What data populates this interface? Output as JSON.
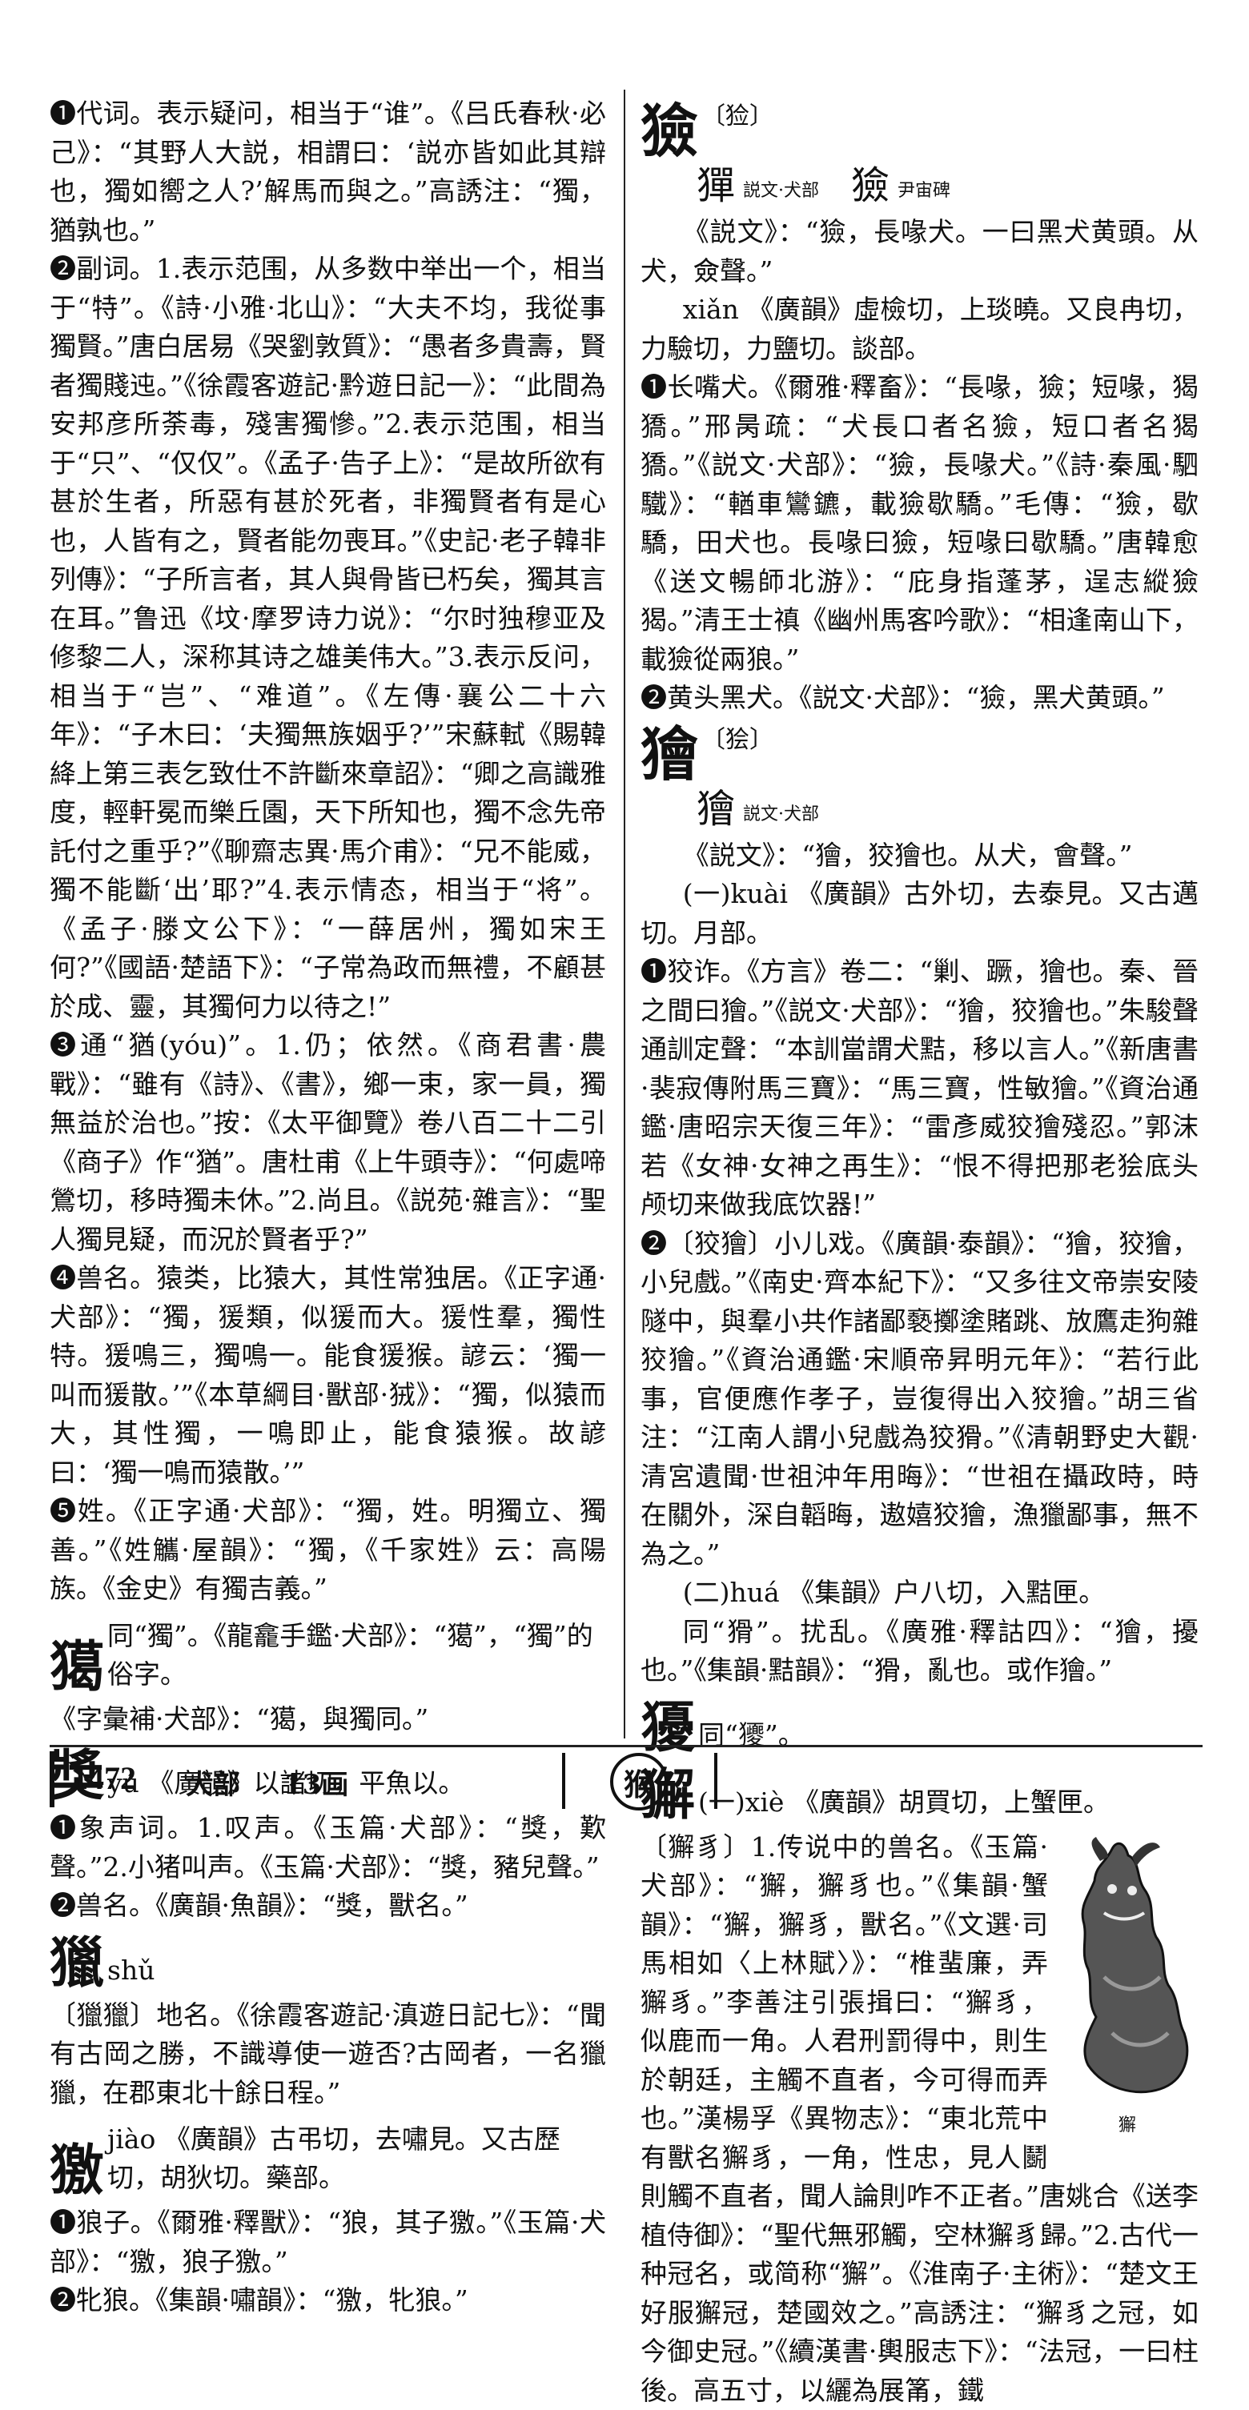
{
  "left_column": [
    {
      "kind": "p",
      "text": "❶代词。表示疑问，相当于“谁”。《吕氏春秋·必己》：“其野人大説，相謂曰：‘説亦皆如此其辯也，獨如嚮之人?’解馬而與之。”高誘注：“獨，猶孰也。”"
    },
    {
      "kind": "p",
      "text": "❷副词。1.表示范围，从多数中举出一个，相当于“特”。《詩·小雅·北山》：“大夫不均，我從事獨賢。”唐白居易《哭劉敦質》：“愚者多貴壽，賢者獨賤迍。”《徐霞客遊記·黔遊日記一》：“此間為安邦彦所荼毒，殘害獨慘。”2.表示范围，相当于“只”、“仅仅”。《孟子·告子上》：“是故所欲有甚於生者，所惡有甚於死者，非獨賢者有是心也，人皆有之，賢者能勿喪耳。”《史記·老子韓非列傳》：“子所言者，其人與骨皆已朽矣，獨其言在耳。”鲁迅《坟·摩罗诗力说》：“尔时独穆亚及修黎二人，深称其诗之雄美伟大。”3.表示反问，相当于“岂”、“难道”。《左傳·襄公二十六年》：“子木曰：‘夫獨無族姻乎?’”宋蘇軾《賜韓絳上第三表乞致仕不許斷來章詔》：“卿之高識雅度，輕軒冕而樂丘園，天下所知也，獨不念先帝託付之重乎?”《聊齋志異·馬介甫》：“兄不能威，獨不能斷‘出’耶?”4.表示情态，相当于“将”。《孟子·滕文公下》：“一薛居州，獨如宋王何?”《國語·楚語下》：“子常為政而無禮，不顧甚於成、靈，其獨何力以待之!”"
    },
    {
      "kind": "p",
      "text": "❸通“猶(yóu)”。1.仍；依然。《商君書·農戰》：“雖有《詩》、《書》，鄉一束，家一員，獨無益於治也。”按：《太平御覽》卷八百二十二引《商子》作“猶”。唐杜甫《上牛頭寺》：“何處啼鶯切，移時獨未休。”2.尚且。《説苑·雜言》：“聖人獨見疑，而況於賢者乎?”"
    },
    {
      "kind": "p",
      "text": "❹兽名。猿类，比猿大，其性常独居。《正字通·犬部》：“獨，猨類，似猨而大。猨性羣，獨性特。猨鳴三，獨鳴一。能食猨猴。諺云：‘獨一叫而猨散。’”《本草綱目·獸部·狨》：“獨，似猿而大，其性獨，一鳴即止，能食猿猴。故諺曰：‘獨一鳴而猿散。’”"
    },
    {
      "kind": "p",
      "text": "❺姓。《正字通·犬部》：“獨，姓。明獨立、獨善。”《姓觿·屋韻》：“獨，《千家姓》云：高陽族。《金史》有獨吉義。”"
    },
    {
      "kind": "head",
      "char": "獦",
      "rest": "同“獨”。《龍龕手鑑·犬部》：“獦”，“獨”的俗字。"
    },
    {
      "kind": "p",
      "text": "《字彙補·犬部》：“獦，與獨同。”"
    },
    {
      "kind": "head",
      "char": "獎",
      "rest": "yú 《廣韻》以諸切，平魚以。"
    },
    {
      "kind": "p",
      "text": "❶象声词。1.叹声。《玉篇·犬部》：“獎，歎聲。”2.小猪叫声。《玉篇·犬部》：“獎，豬兒聲。”"
    },
    {
      "kind": "p",
      "text": "❷兽名。《廣韻·魚韻》：“獎，獸名。”"
    },
    {
      "kind": "head",
      "char": "獵",
      "rest": "shǔ"
    },
    {
      "kind": "p",
      "text": "〔獵獵〕地名。《徐霞客遊記·滇遊日記七》：“聞有古岡之勝，不識導使一遊否?古岡者，一名獵獵，在郡東北十餘日程。”"
    },
    {
      "kind": "head",
      "char": "獥",
      "rest": "jiào 《廣韻》古弔切，去嘯見。又古歷切，胡狄切。藥部。"
    },
    {
      "kind": "p",
      "text": "❶狼子。《爾雅·釋獸》：“狼，其子獥。”《玉篇·犬部》：“獥，狼子獥。”"
    },
    {
      "kind": "p",
      "text": "❷牝狼。《集韻·嘯韻》：“獥，牝狼。”"
    }
  ],
  "right_column_top": {
    "char": "獫",
    "variant": "〔猃〕",
    "seals": [
      {
        "glyph": "㺗",
        "src": "説文·犬部"
      },
      {
        "glyph": "獫",
        "src": "尹宙碑"
      }
    ]
  },
  "right_column": [
    {
      "kind": "p",
      "ind": true,
      "text": "《説文》：“獫，長喙犬。一曰黑犬黄頭。从犬，僉聲。”"
    },
    {
      "kind": "p",
      "ind": true,
      "text": "xiǎn 《廣韻》虛檢切，上琰曉。又良冉切，力驗切，力鹽切。談部。"
    },
    {
      "kind": "p",
      "text": "❶长嘴犬。《爾雅·釋畜》：“長喙，獫；短喙，猲獢。”邢昺疏：“犬長口者名獫，短口者名猲獢。”《説文·犬部》：“獫，長喙犬。”《詩·秦風·駟驖》：“輶車鸞鑣，載獫歇驕。”毛傳：“獫，歇驕，田犬也。長喙曰獫，短喙曰歇驕。”唐韓愈《送文暢師北游》：“庇身指蓬茅，逞志縱獫猲。”清王士禛《幽州馬客吟歌》：“相逢南山下，載獫從兩狼。”"
    },
    {
      "kind": "p",
      "text": "❷黄头黑犬。《説文·犬部》：“獫，黑犬黄頭。”"
    }
  ],
  "kuai_head": {
    "char": "獪",
    "variant": "〔狯〕",
    "seal_glyph": "獪",
    "seal_src": "説文·犬部"
  },
  "right_column_2": [
    {
      "kind": "p",
      "ind": true,
      "text": "《説文》：“獪，狡獪也。从犬，會聲。”"
    },
    {
      "kind": "p",
      "ind": true,
      "text": "(一)kuài 《廣韻》古外切，去泰見。又古邁切。月部。"
    },
    {
      "kind": "p",
      "text": "❶狡诈。《方言》卷二：“剿、蹶，獪也。秦、晉之間曰獪。”《説文·犬部》：“獪，狡獪也。”朱駿聲通訓定聲：“本訓當謂犬黠，移以言人。”《新唐書·裴寂傳附馬三寶》：“馬三寶，性敏獪。”《資治通鑑·唐昭宗天復三年》：“雷彥威狡獪殘忍。”郭沫若《女神·女神之再生》：“恨不得把那老狯底头颅切来做我底饮器!”"
    },
    {
      "kind": "p",
      "text": "❷〔狡獪〕小儿戏。《廣韻·泰韻》：“獪，狡獪，小兒戲。”《南史·齊本紀下》：“又多往文帝崇安陵隧中，與羣小共作諸鄙褻擲塗賭跳、放鷹走狗雜狡獪。”《資治通鑑·宋順帝昇明元年》：“若行此事，官便應作孝子，豈復得出入狡獪。”胡三省注：“江南人謂小兒戲為狡猾。”《清朝野史大觀·清宮遺聞·世祖沖年用晦》：“世祖在攝政時，時在關外，深自韜晦，遨嬉狡獪，漁獵鄙事，無不為之。”"
    },
    {
      "kind": "p",
      "ind": true,
      "text": "(二)huá 《集韻》户八切，入黠匣。"
    },
    {
      "kind": "p",
      "ind": true,
      "text": "同“猾”。扰乱。《廣雅·釋詁四》：“獪，擾也。”《集韻·黠韻》：“猾，亂也。或作獪。”"
    },
    {
      "kind": "head",
      "char": "獶",
      "rest": "同“獿”。"
    }
  ],
  "xie_head": {
    "char": "獬",
    "rest": "(一)xiè 《廣韻》胡買切，上蟹匣。"
  },
  "lion_caption": "獬",
  "xie_text": "〔獬豸〕1.传说中的兽名。《玉篇·犬部》：“獬，獬豸也。”《集韻·蟹韻》：“獬，獬豸，獸名。”《文選·司馬相如〈上林賦〉》：“椎蜚廉，弄獬豸。”李善注引張揖曰：“獬豸，似鹿而一角。人君刑罰得中，則生於朝廷，主觸不直者，今可得而弄也。”漢楊孚《異物志》：“東北荒中有獸名獬豸，一角，性忠，見人鬭則觸不直者，聞人論則咋不正者。”唐姚合《送李植侍御》：“聖代無邪觸，空林獬豸歸。”2.古代一种冠名，或简称“獬”。《淮南子·主術》：“楚文王好服獬冠，楚國效之。”高誘注：“獬豸之冠，如今御史冠。”《續漢書·輿服志下》：“法冠，一曰柱後。高五寸，以纚為展筩，鐵",
  "footer": {
    "page_number": "1472",
    "radical": "犬部",
    "strokes": "13画",
    "badge": "猴"
  }
}
